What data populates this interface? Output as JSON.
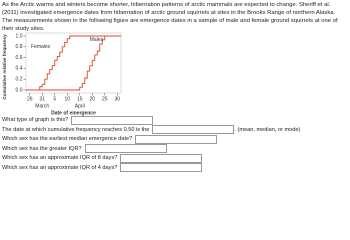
{
  "intro": "As the Arctic warms and winters become shorter, hibernation patterns of arctic mammals are expected to change. Sheriff et al. (2011) investigated emergence dates from hibernation of arctic ground squirrels at sites in the Brooks Range of northern Alaska. The measurements shown in the following figure are emergence dates in a sample of male and female ground squirrels at one of their study sites.",
  "chart_data": {
    "type": "line",
    "drawstyle": "steps-post",
    "ylabel": "Cumulative relative frequency",
    "xlabel": "Date of emergence",
    "months": [
      "March",
      "April"
    ],
    "xlim": [
      -1.5,
      36.5
    ],
    "ylim": [
      0,
      1
    ],
    "xticks": [
      {
        "value": 0,
        "label": "26"
      },
      {
        "value": 5,
        "label": "31"
      },
      {
        "value": 10,
        "label": "5"
      },
      {
        "value": 15,
        "label": "10"
      },
      {
        "value": 20,
        "label": "15"
      },
      {
        "value": 25,
        "label": "20"
      },
      {
        "value": 30,
        "label": "25"
      },
      {
        "value": 35,
        "label": "30"
      }
    ],
    "yticks": [
      {
        "value": 0,
        "label": "0.0"
      },
      0.2,
      0.4,
      0.6,
      0.8,
      {
        "value": 1,
        "label": "1.0"
      }
    ],
    "series": [
      {
        "name": "Females",
        "color": "#d9472b",
        "x": [
          4,
          5,
          6,
          7,
          8,
          9,
          10,
          11,
          12,
          13,
          14,
          15,
          16
        ],
        "values": [
          0.06,
          0.1,
          0.2,
          0.3,
          0.38,
          0.45,
          0.55,
          0.62,
          0.7,
          0.8,
          0.88,
          0.95,
          1.0
        ]
      },
      {
        "name": "Males",
        "color": "#d9472b",
        "x": [
          20,
          21,
          22,
          23,
          24,
          25,
          26,
          27,
          28,
          29,
          30
        ],
        "values": [
          0.05,
          0.12,
          0.22,
          0.35,
          0.45,
          0.55,
          0.65,
          0.72,
          0.85,
          0.93,
          1.0
        ]
      }
    ]
  },
  "questions": [
    {
      "text": "What type of graph is this?"
    },
    {
      "text": "The date at which cumulative frequency reaches 0.50 is the",
      "suffix": ". (mean, median, or mode)"
    },
    {
      "text": "Which sex has the earliest median emergence date?"
    },
    {
      "text": "Which sex has the greater IQR?"
    },
    {
      "text": "Which sex has an approximate IQR of 8 days?"
    },
    {
      "text": "Which sex has an approximate IQR of 4 days?"
    }
  ]
}
